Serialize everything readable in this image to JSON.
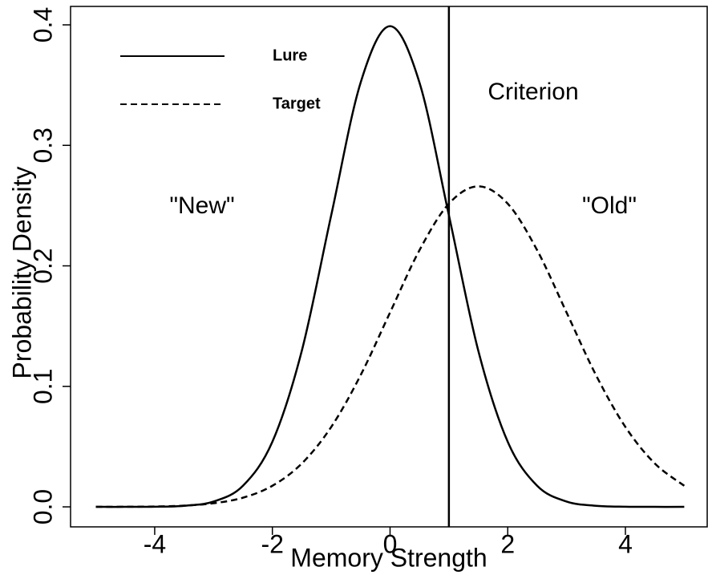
{
  "chart_data": {
    "type": "line",
    "xlabel": "Memory Strength",
    "ylabel": "Probability Density",
    "x": [
      -5,
      -4.5,
      -4,
      -3.5,
      -3,
      -2.5,
      -2,
      -1.5,
      -1,
      -0.5,
      0,
      0.5,
      1,
      1.5,
      2,
      2.5,
      3,
      3.5,
      4,
      4.5,
      5
    ],
    "series": [
      {
        "name": "Lure",
        "color": "#000000",
        "dash": "solid",
        "values": [
          0.0,
          0.0,
          0.0001,
          0.0009,
          0.0044,
          0.0175,
          0.054,
          0.1295,
          0.242,
          0.3521,
          0.3989,
          0.3521,
          0.242,
          0.1295,
          0.054,
          0.0175,
          0.0044,
          0.0009,
          0.0001,
          0.0,
          0.0
        ]
      },
      {
        "name": "Target",
        "color": "#000000",
        "dash": "dashed",
        "values": [
          0.0,
          0.0001,
          0.0003,
          0.001,
          0.003,
          0.0076,
          0.0175,
          0.036,
          0.0663,
          0.1093,
          0.1613,
          0.213,
          0.2516,
          0.266,
          0.2516,
          0.213,
          0.1613,
          0.1093,
          0.0663,
          0.036,
          0.0175
        ]
      }
    ],
    "criterion": 1,
    "annotations": [
      "Criterion",
      "\"New\"",
      "\"Old\""
    ],
    "xlim": [
      -5.43,
      5.39
    ],
    "ylim": [
      -0.0166,
      0.4153
    ],
    "xticks": [
      -4,
      -2,
      0,
      2,
      4
    ],
    "yticks": [
      {
        "value": 0,
        "label": "0.0"
      },
      0.1,
      0.2,
      0.3,
      0.4
    ],
    "legend": "top-left",
    "grid": false
  }
}
